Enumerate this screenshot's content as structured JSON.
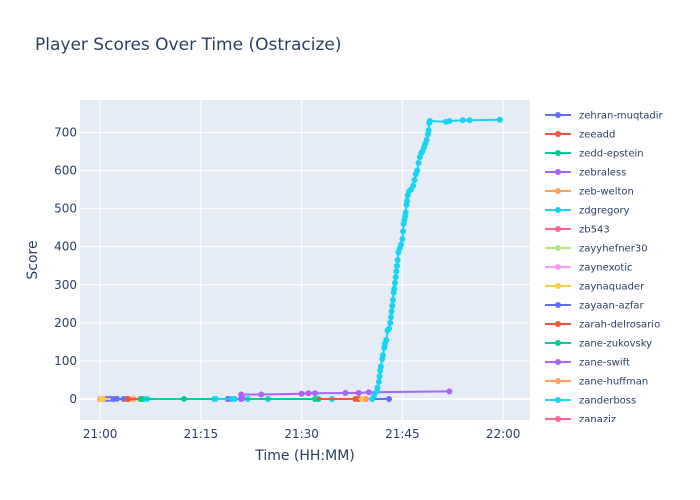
{
  "chart_data": {
    "type": "line",
    "title": "Player Scores Over Time (Ostracize)",
    "xlabel": "Time (HH:MM)",
    "ylabel": "Score",
    "x_ticks": [
      "21:00",
      "21:15",
      "21:30",
      "21:45",
      "22:00"
    ],
    "x_tick_minutes": [
      0,
      15,
      30,
      45,
      60
    ],
    "xlim_minutes": [
      -3,
      64
    ],
    "y_ticks": [
      0,
      100,
      200,
      300,
      400,
      500,
      600,
      700
    ],
    "ylim": [
      -55,
      785
    ],
    "grid": true,
    "legend_position": "right",
    "colors": {
      "plot_background": "#e5ecf6",
      "grid": "#ffffff",
      "text": "#2a3f5f"
    },
    "series": [
      {
        "name": "zehran-muqtadir",
        "color": "#636efa",
        "points": [
          [
            1,
            0
          ],
          [
            1.5,
            1
          ],
          [
            2.5,
            1
          ],
          [
            3.5,
            0
          ],
          [
            43,
            0
          ]
        ]
      },
      {
        "name": "zeeadd",
        "color": "#ef553b",
        "points": [
          [
            4,
            0
          ],
          [
            20,
            0
          ],
          [
            38.5,
            0
          ]
        ]
      },
      {
        "name": "zedd-epstein",
        "color": "#00cc96",
        "points": [
          [
            6,
            0
          ],
          [
            12.5,
            0
          ],
          [
            32.5,
            0
          ]
        ]
      },
      {
        "name": "zebraless",
        "color": "#ab63fa",
        "points": [
          [
            21,
            12
          ],
          [
            24,
            12
          ],
          [
            30,
            14
          ],
          [
            31,
            15
          ],
          [
            32,
            15
          ],
          [
            36.5,
            16
          ],
          [
            38.5,
            16
          ],
          [
            40,
            18
          ],
          [
            52,
            20
          ]
        ]
      },
      {
        "name": "zeb-welton",
        "color": "#ffa15a",
        "points": [
          [
            0,
            0
          ],
          [
            0.5,
            0
          ],
          [
            5,
            0
          ],
          [
            39.5,
            0
          ]
        ]
      },
      {
        "name": "zdgregory",
        "color": "#19d3f3",
        "points": [
          [
            6.5,
            0
          ],
          [
            7,
            0
          ],
          [
            17,
            0
          ],
          [
            19.5,
            0
          ],
          [
            22,
            0
          ],
          [
            25,
            0
          ],
          [
            34.5,
            0
          ],
          [
            40.5,
            0
          ],
          [
            40.8,
            10
          ],
          [
            41.2,
            20
          ],
          [
            41.3,
            30
          ],
          [
            41.5,
            45
          ],
          [
            41.6,
            60
          ],
          [
            41.7,
            75
          ],
          [
            41.8,
            85
          ],
          [
            42,
            105
          ],
          [
            42.1,
            115
          ],
          [
            42.3,
            135
          ],
          [
            42.4,
            145
          ],
          [
            42.6,
            155
          ],
          [
            42.8,
            180
          ],
          [
            43,
            185
          ],
          [
            43.2,
            200
          ],
          [
            43.3,
            215
          ],
          [
            43.4,
            230
          ],
          [
            43.5,
            245
          ],
          [
            43.6,
            260
          ],
          [
            43.7,
            280
          ],
          [
            43.8,
            290
          ],
          [
            43.9,
            305
          ],
          [
            44,
            320
          ],
          [
            44.1,
            335
          ],
          [
            44.2,
            350
          ],
          [
            44.3,
            365
          ],
          [
            44.4,
            385
          ],
          [
            44.6,
            395
          ],
          [
            44.8,
            405
          ],
          [
            45,
            420
          ],
          [
            45.1,
            440
          ],
          [
            45.2,
            460
          ],
          [
            45.3,
            470
          ],
          [
            45.4,
            480
          ],
          [
            45.5,
            490
          ],
          [
            45.6,
            510
          ],
          [
            45.7,
            520
          ],
          [
            45.8,
            535
          ],
          [
            46,
            545
          ],
          [
            46.3,
            550
          ],
          [
            46.6,
            560
          ],
          [
            46.8,
            575
          ],
          [
            47,
            590
          ],
          [
            47.2,
            600
          ],
          [
            47.4,
            620
          ],
          [
            47.6,
            635
          ],
          [
            47.8,
            645
          ],
          [
            48,
            650
          ],
          [
            48.2,
            660
          ],
          [
            48.4,
            670
          ],
          [
            48.6,
            680
          ],
          [
            48.8,
            695
          ],
          [
            48.9,
            705
          ],
          [
            49,
            725
          ],
          [
            49.1,
            730
          ],
          [
            51.5,
            728
          ],
          [
            52,
            730
          ],
          [
            54,
            732
          ],
          [
            55,
            732
          ],
          [
            59.5,
            733
          ]
        ]
      },
      {
        "name": "zb543",
        "color": "#ff6692",
        "points": []
      },
      {
        "name": "zayyhefner30",
        "color": "#b6e880",
        "points": []
      },
      {
        "name": "zaynexotic",
        "color": "#ff97ff",
        "points": []
      },
      {
        "name": "zaynaquader",
        "color": "#fecb52",
        "points": [
          [
            0.2,
            0
          ],
          [
            39,
            0
          ]
        ]
      },
      {
        "name": "zayaan-azfar",
        "color": "#636efa",
        "points": [
          [
            2,
            0
          ],
          [
            19,
            0
          ],
          [
            21,
            0
          ]
        ]
      },
      {
        "name": "zarah-delrosario",
        "color": "#ef553b",
        "points": [
          [
            4.2,
            0
          ],
          [
            38,
            0
          ]
        ]
      },
      {
        "name": "zane-zukovsky",
        "color": "#00cc96",
        "points": [
          [
            6.2,
            0
          ],
          [
            32,
            0
          ]
        ]
      },
      {
        "name": "zane-swift",
        "color": "#ab63fa",
        "points": [
          [
            21,
            0
          ],
          [
            21.2,
            2
          ]
        ]
      },
      {
        "name": "zane-huffman",
        "color": "#ffa15a",
        "points": [
          [
            39.6,
            0
          ]
        ]
      },
      {
        "name": "zanderboss",
        "color": "#19d3f3",
        "points": [
          [
            17.2,
            0
          ],
          [
            20,
            0
          ]
        ]
      },
      {
        "name": "zanaziz",
        "color": "#ff6692",
        "points": []
      }
    ]
  }
}
